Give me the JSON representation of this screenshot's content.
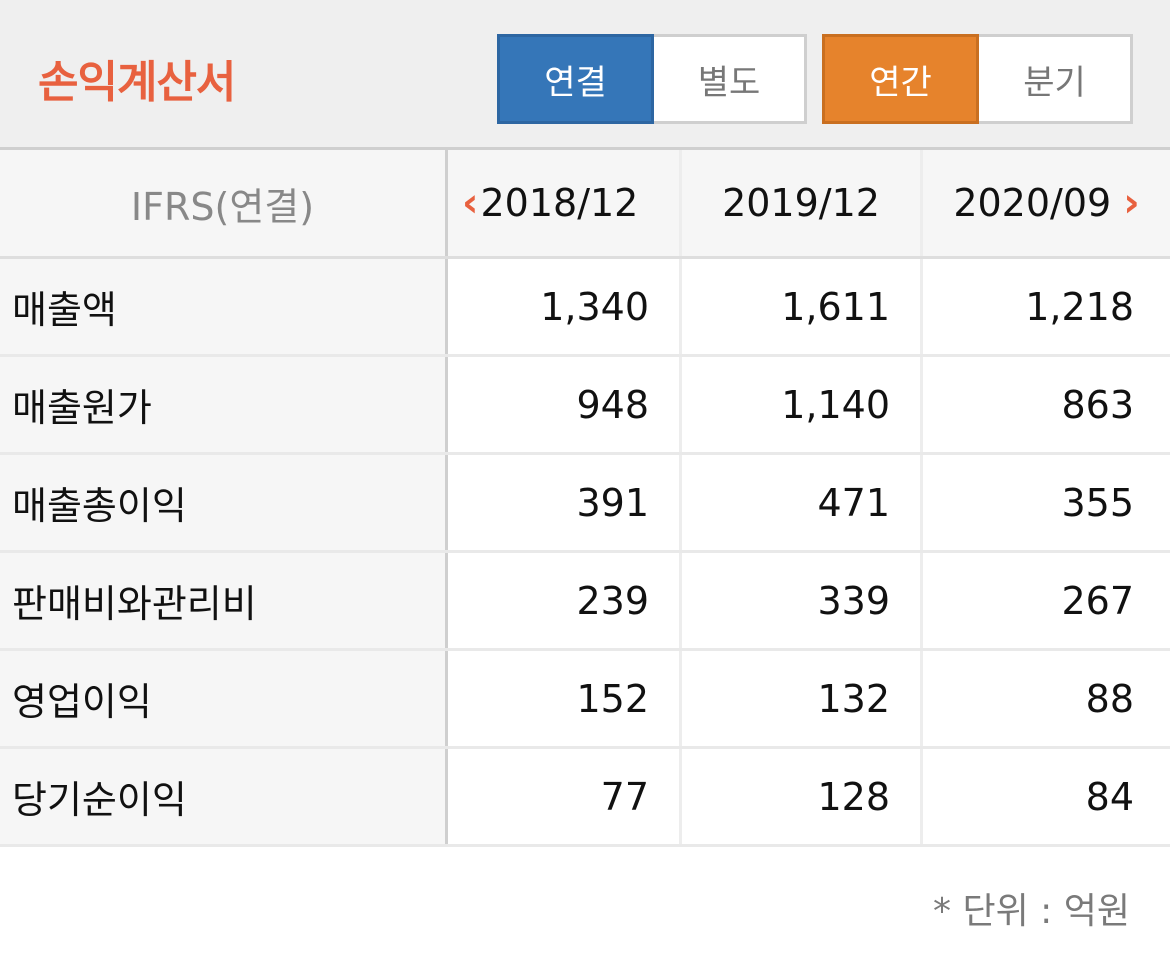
{
  "title": "손익계산서",
  "scope_toggle": {
    "options": [
      "연결",
      "별도"
    ],
    "selected": "연결",
    "active_color": "#3576b8"
  },
  "period_toggle": {
    "options": [
      "연간",
      "분기"
    ],
    "selected": "연간",
    "active_color": "#e6832c"
  },
  "accent_color": "#e8613f",
  "table": {
    "header_label": "IFRS(연결)",
    "columns": [
      "2018/12",
      "2019/12",
      "2020/09"
    ],
    "nav": {
      "prev_icon": "chevron-left-icon",
      "next_icon": "chevron-right-icon"
    },
    "rows": [
      {
        "label": "매출액",
        "values": [
          "1,340",
          "1,611",
          "1,218"
        ]
      },
      {
        "label": "매출원가",
        "values": [
          "948",
          "1,140",
          "863"
        ]
      },
      {
        "label": "매출총이익",
        "values": [
          "391",
          "471",
          "355"
        ]
      },
      {
        "label": "판매비와관리비",
        "values": [
          "239",
          "339",
          "267"
        ]
      },
      {
        "label": "영업이익",
        "values": [
          "152",
          "132",
          "88"
        ]
      },
      {
        "label": "당기순이익",
        "values": [
          "77",
          "128",
          "84"
        ]
      }
    ]
  },
  "unit_note": "* 단위 : 억원"
}
